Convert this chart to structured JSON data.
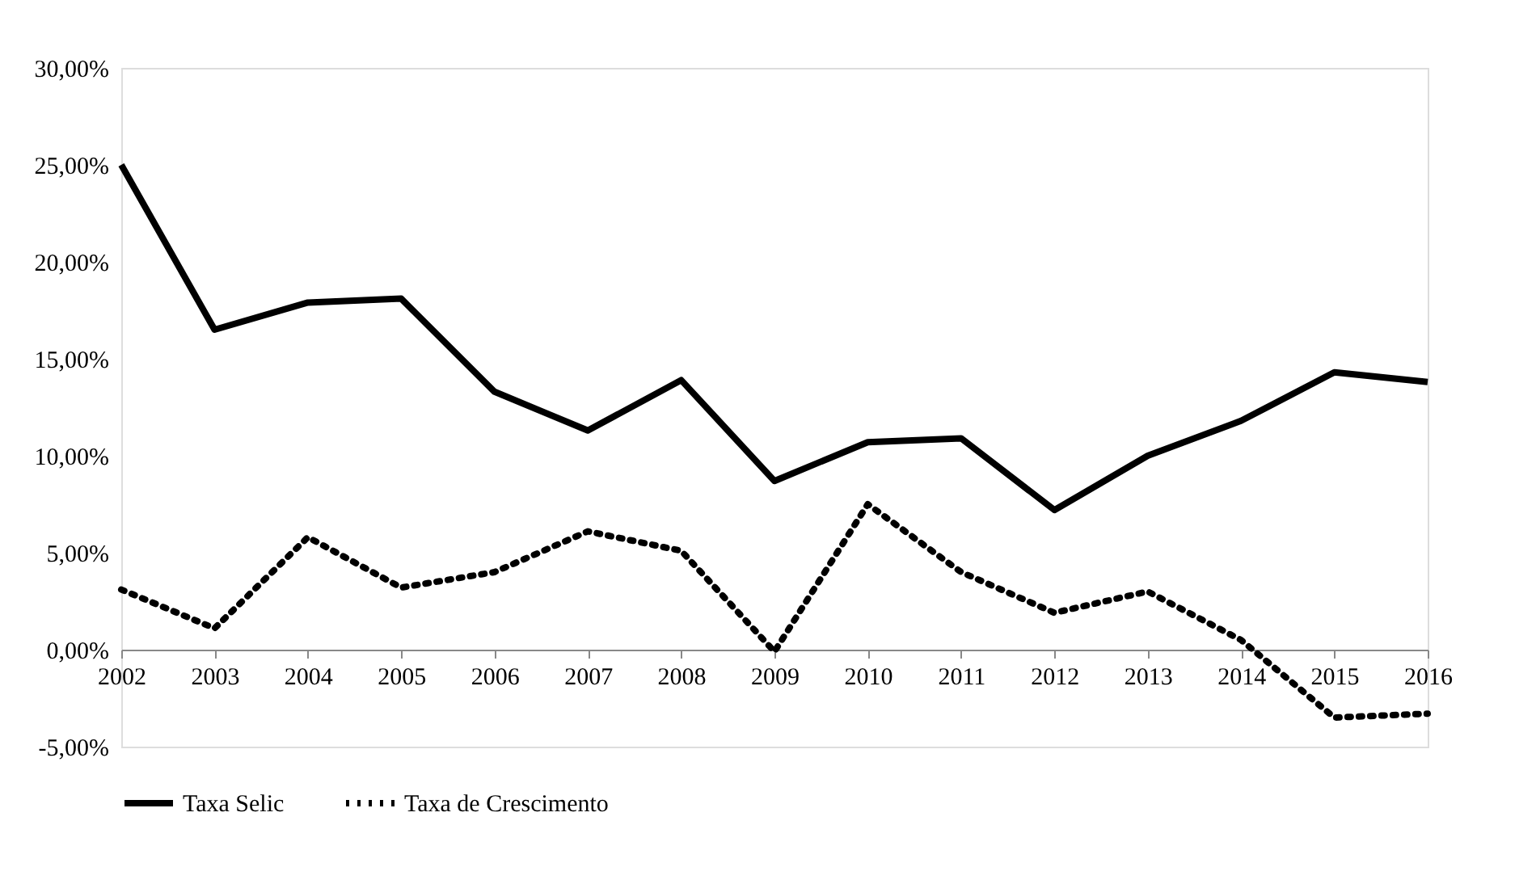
{
  "chart_data": {
    "type": "line",
    "categories": [
      "2002",
      "2003",
      "2004",
      "2005",
      "2006",
      "2007",
      "2008",
      "2009",
      "2010",
      "2011",
      "2012",
      "2013",
      "2014",
      "2015",
      "2016"
    ],
    "series": [
      {
        "name": "Taxa Selic",
        "color": "#000000",
        "line_style": "solid",
        "values": [
          25.0,
          16.5,
          17.9,
          18.1,
          13.3,
          11.3,
          13.9,
          8.7,
          10.7,
          10.9,
          7.2,
          10.0,
          11.8,
          14.3,
          13.8
        ]
      },
      {
        "name": "Taxa de Crescimento",
        "color": "#000000",
        "line_style": "dotted",
        "values": [
          3.1,
          1.1,
          5.8,
          3.2,
          4.0,
          6.1,
          5.1,
          -0.1,
          7.5,
          4.0,
          1.9,
          3.0,
          0.5,
          -3.5,
          -3.3
        ]
      }
    ],
    "ylim": [
      -5,
      30
    ],
    "yticks": [
      {
        "value": -5,
        "label": "-5,00%"
      },
      {
        "value": 0,
        "label": "0,00%"
      },
      {
        "value": 5,
        "label": "5,00%"
      },
      {
        "value": 10,
        "label": "10,00%"
      },
      {
        "value": 15,
        "label": "15,00%"
      },
      {
        "value": 20,
        "label": "20,00%"
      },
      {
        "value": 25,
        "label": "25,00%"
      },
      {
        "value": 30,
        "label": "30,00%"
      }
    ],
    "grid": false,
    "legend": "bottom",
    "marker": "none"
  }
}
